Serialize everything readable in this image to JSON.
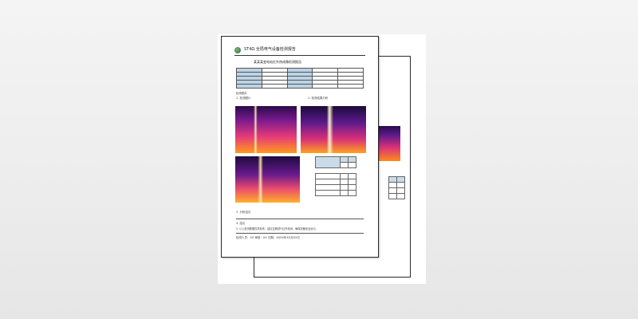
{
  "document": {
    "title": "ST4Ω 全局电气设备检测报告",
    "subtitle": "某某某变电站红外热成像检测报告",
    "section_images": "检测图片",
    "section_analysis": "3. 分析结论",
    "footer_1": "4. 结论",
    "footer_2": "5. 以上检测数据仅供参考，建议定期进行红外检测，确保设备安全运行。",
    "footer_3": "检测人员：XX 审核：XX 日期：XXXX年XX月XX日",
    "label_1": "1. 检测图片",
    "label_2": "2. 检测结果分析"
  },
  "colors": {
    "header_fill": "#bcd3e6",
    "border": "#2a2a2a"
  }
}
